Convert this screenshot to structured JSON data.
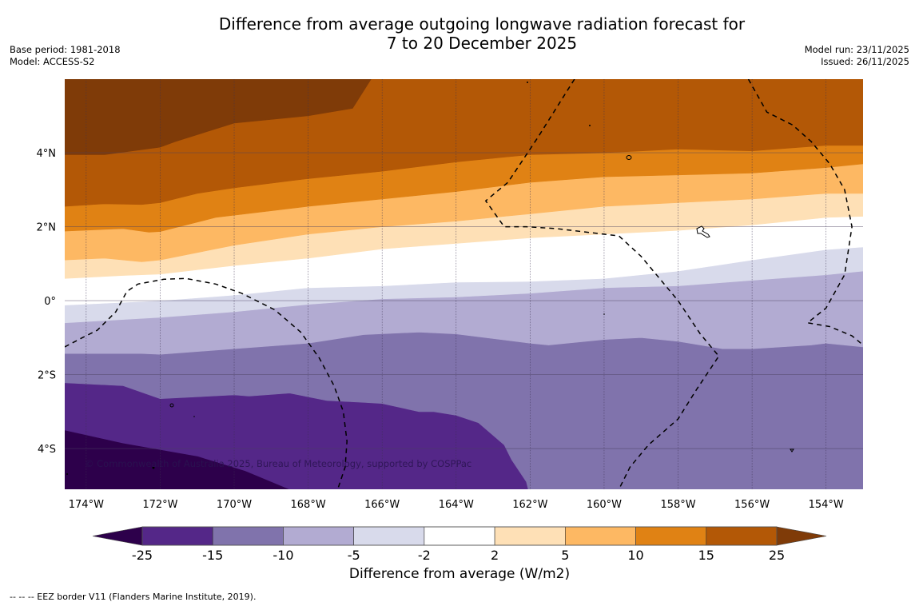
{
  "header": {
    "title_line1": "Difference from average outgoing longwave radiation forecast for",
    "title_line2": "7 to 20 December 2025",
    "base_period": "Base period: 1981-2018",
    "model": "Model: ACCESS-S2",
    "model_run": "Model run: 23/11/2025",
    "issued": "Issued: 26/11/2025"
  },
  "map": {
    "extent": {
      "lon_min": -174.58,
      "lon_max": -153.0,
      "lat_min": -5.1,
      "lat_max": 5.99
    },
    "lat_ticks": [
      {
        "value": 4,
        "label": "4°N"
      },
      {
        "value": 2,
        "label": "2°N"
      },
      {
        "value": 0,
        "label": "0°"
      },
      {
        "value": -2,
        "label": "2°S"
      },
      {
        "value": -4,
        "label": "4°S"
      }
    ],
    "lon_ticks": [
      {
        "value": -174,
        "label": "174°W"
      },
      {
        "value": -172,
        "label": "172°W"
      },
      {
        "value": -170,
        "label": "170°W"
      },
      {
        "value": -168,
        "label": "168°W"
      },
      {
        "value": -166,
        "label": "166°W"
      },
      {
        "value": -164,
        "label": "164°W"
      },
      {
        "value": -162,
        "label": "162°W"
      },
      {
        "value": -160,
        "label": "160°W"
      },
      {
        "value": -158,
        "label": "158°W"
      },
      {
        "value": -156,
        "label": "156°W"
      },
      {
        "value": -154,
        "label": "154°W"
      }
    ],
    "copyright": "© Commonwealth of Australia 2025, Bureau of Meteorology, supported by COSPPac",
    "contour_bands_note": "Each boundary is the lower (southern) edge of a band, listed as [lon, lat] pairs west→east; bands fill from this edge up to the previous boundary.",
    "bands": [
      {
        "range": ">25",
        "color": "#7f3b08",
        "lower_edge": [
          [
            -174.58,
            3.95
          ],
          [
            -173.5,
            3.95
          ],
          [
            -172,
            4.15
          ],
          [
            -171.6,
            4.3
          ],
          [
            -170,
            4.8
          ],
          [
            -168,
            5.0
          ],
          [
            -166.8,
            5.2
          ],
          [
            -166.3,
            5.99
          ]
        ]
      },
      {
        "range": "15 to 25",
        "color": "#b35806",
        "lower_edge": [
          [
            -174.58,
            2.55
          ],
          [
            -173.5,
            2.62
          ],
          [
            -172.5,
            2.6
          ],
          [
            -172,
            2.65
          ],
          [
            -171,
            2.9
          ],
          [
            -170,
            3.05
          ],
          [
            -168,
            3.3
          ],
          [
            -166,
            3.5
          ],
          [
            -164,
            3.75
          ],
          [
            -162,
            3.95
          ],
          [
            -160,
            4.0
          ],
          [
            -158,
            4.1
          ],
          [
            -156,
            4.05
          ],
          [
            -154,
            4.2
          ],
          [
            -153,
            4.2
          ]
        ]
      },
      {
        "range": "10 to 15",
        "color": "#e08214",
        "lower_edge": [
          [
            -174.58,
            1.88
          ],
          [
            -173,
            1.95
          ],
          [
            -172.3,
            1.85
          ],
          [
            -172,
            1.87
          ],
          [
            -170.5,
            2.25
          ],
          [
            -168,
            2.55
          ],
          [
            -166,
            2.75
          ],
          [
            -164,
            2.95
          ],
          [
            -162,
            3.2
          ],
          [
            -160,
            3.35
          ],
          [
            -158,
            3.4
          ],
          [
            -156,
            3.45
          ],
          [
            -154,
            3.6
          ],
          [
            -153,
            3.7
          ]
        ]
      },
      {
        "range": "5 to 10",
        "color": "#fdb863",
        "lower_edge": [
          [
            -174.58,
            1.1
          ],
          [
            -173.5,
            1.15
          ],
          [
            -172.5,
            1.05
          ],
          [
            -172,
            1.1
          ],
          [
            -170,
            1.5
          ],
          [
            -168,
            1.8
          ],
          [
            -166,
            2.0
          ],
          [
            -164,
            2.15
          ],
          [
            -162,
            2.35
          ],
          [
            -160,
            2.55
          ],
          [
            -158,
            2.65
          ],
          [
            -156,
            2.75
          ],
          [
            -154,
            2.9
          ],
          [
            -153,
            2.9
          ]
        ]
      },
      {
        "range": "2 to 5",
        "color": "#fee0b6",
        "lower_edge": [
          [
            -174.58,
            0.6
          ],
          [
            -173,
            0.68
          ],
          [
            -172,
            0.72
          ],
          [
            -170,
            0.95
          ],
          [
            -168,
            1.15
          ],
          [
            -166,
            1.4
          ],
          [
            -164,
            1.55
          ],
          [
            -162,
            1.7
          ],
          [
            -160,
            1.8
          ],
          [
            -158,
            1.9
          ],
          [
            -156,
            2.05
          ],
          [
            -154,
            2.25
          ],
          [
            -153,
            2.28
          ]
        ]
      },
      {
        "range": "-2 to 2",
        "color": "#ffffff",
        "lower_edge": [
          [
            -174.58,
            -0.12
          ],
          [
            -172,
            0.0
          ],
          [
            -170,
            0.15
          ],
          [
            -168,
            0.35
          ],
          [
            -166,
            0.4
          ],
          [
            -164,
            0.5
          ],
          [
            -162,
            0.52
          ],
          [
            -160,
            0.6
          ],
          [
            -158,
            0.8
          ],
          [
            -156,
            1.1
          ],
          [
            -154,
            1.38
          ],
          [
            -153,
            1.45
          ]
        ]
      },
      {
        "range": "-5 to -2",
        "color": "#d8daeb",
        "lower_edge": [
          [
            -174.58,
            -0.6
          ],
          [
            -172,
            -0.45
          ],
          [
            -170,
            -0.3
          ],
          [
            -168,
            -0.1
          ],
          [
            -166,
            0.05
          ],
          [
            -164,
            0.1
          ],
          [
            -162,
            0.2
          ],
          [
            -160,
            0.35
          ],
          [
            -158,
            0.4
          ],
          [
            -156,
            0.55
          ],
          [
            -154,
            0.7
          ],
          [
            -153,
            0.8
          ]
        ]
      },
      {
        "range": "-10 to -5",
        "color": "#b2abd2",
        "lower_edge": [
          [
            -174.58,
            -1.43
          ],
          [
            -172.5,
            -1.43
          ],
          [
            -172,
            -1.45
          ],
          [
            -170,
            -1.3
          ],
          [
            -168,
            -1.15
          ],
          [
            -166.5,
            -0.92
          ],
          [
            -165,
            -0.85
          ],
          [
            -164,
            -0.9
          ],
          [
            -162,
            -1.15
          ],
          [
            -161.5,
            -1.2
          ],
          [
            -160,
            -1.05
          ],
          [
            -159,
            -1.0
          ],
          [
            -158,
            -1.1
          ],
          [
            -156.8,
            -1.3
          ],
          [
            -156,
            -1.3
          ],
          [
            -154.4,
            -1.2
          ],
          [
            -154,
            -1.15
          ],
          [
            -153,
            -1.25
          ]
        ]
      },
      {
        "range": "-15 to -10",
        "color": "#8073ac",
        "lower_edge": [
          [
            -174.58,
            -2.22
          ],
          [
            -173,
            -2.3
          ],
          [
            -172,
            -2.65
          ],
          [
            -170,
            -2.55
          ],
          [
            -169.6,
            -2.58
          ],
          [
            -168.5,
            -2.5
          ],
          [
            -167.5,
            -2.7
          ],
          [
            -166.5,
            -2.75
          ],
          [
            -166,
            -2.78
          ],
          [
            -165,
            -3.0
          ],
          [
            -164.6,
            -3.0
          ],
          [
            -164,
            -3.1
          ],
          [
            -163.4,
            -3.3
          ],
          [
            -162.7,
            -3.9
          ],
          [
            -162.5,
            -4.3
          ],
          [
            -162.1,
            -4.9
          ],
          [
            -162.05,
            -5.1
          ]
        ]
      },
      {
        "range": "-25 to -15",
        "color": "#542788",
        "lower_edge": [
          [
            -174.58,
            -3.5
          ],
          [
            -173,
            -3.85
          ],
          [
            -171,
            -4.2
          ],
          [
            -169.7,
            -4.6
          ],
          [
            -168.5,
            -5.1
          ]
        ]
      },
      {
        "range": "<-25",
        "color": "#2d004b",
        "lower_edge": [
          [
            -174.58,
            -5.1
          ]
        ]
      }
    ],
    "eez_borders": [
      [
        [
          -174.58,
          -1.25
        ],
        [
          -174.1,
          -1.0
        ],
        [
          -173.7,
          -0.8
        ],
        [
          -173.2,
          -0.3
        ],
        [
          -172.9,
          0.25
        ],
        [
          -172.6,
          0.45
        ],
        [
          -171.9,
          0.58
        ],
        [
          -171.3,
          0.6
        ],
        [
          -170.5,
          0.45
        ],
        [
          -169.8,
          0.2
        ],
        [
          -168.9,
          -0.25
        ],
        [
          -168.2,
          -0.85
        ],
        [
          -167.7,
          -1.55
        ],
        [
          -167.3,
          -2.3
        ],
        [
          -167.05,
          -3.0
        ],
        [
          -166.95,
          -3.8
        ],
        [
          -167.0,
          -4.5
        ],
        [
          -167.2,
          -5.1
        ]
      ],
      [
        [
          -160.8,
          5.99
        ],
        [
          -161.8,
          4.4
        ],
        [
          -162.6,
          3.2
        ],
        [
          -163.2,
          2.7
        ],
        [
          -162.7,
          2.0
        ],
        [
          -162.1,
          2.0
        ],
        [
          -161.3,
          1.95
        ],
        [
          -159.6,
          1.75
        ],
        [
          -159.0,
          1.2
        ],
        [
          -158.0,
          0.0
        ],
        [
          -157.4,
          -0.9
        ],
        [
          -156.9,
          -1.5
        ],
        [
          -157.5,
          -2.4
        ],
        [
          -158.0,
          -3.2
        ],
        [
          -158.8,
          -3.9
        ],
        [
          -159.3,
          -4.5
        ],
        [
          -159.6,
          -5.1
        ]
      ],
      [
        [
          -156.1,
          5.99
        ],
        [
          -155.6,
          5.1
        ],
        [
          -154.9,
          4.75
        ],
        [
          -154.4,
          4.3
        ],
        [
          -153.9,
          3.7
        ],
        [
          -153.5,
          3.0
        ],
        [
          -153.3,
          2.0
        ],
        [
          -153.5,
          0.7
        ],
        [
          -154.0,
          -0.2
        ],
        [
          -154.5,
          -0.6
        ],
        [
          -153.9,
          -0.7
        ],
        [
          -153.3,
          -0.95
        ],
        [
          -153.0,
          -1.2
        ]
      ]
    ]
  },
  "colorbar": {
    "title": "Difference from average (W/m2)",
    "ticks": [
      "-25",
      "-15",
      "-10",
      "-5",
      "-2",
      "2",
      "5",
      "10",
      "15",
      "25"
    ],
    "under_color": "#2d004b",
    "over_color": "#7f3b08",
    "colors": [
      "#542788",
      "#8073ac",
      "#b2abd2",
      "#d8daeb",
      "#ffffff",
      "#fee0b6",
      "#fdb863",
      "#e08214",
      "#b35806"
    ]
  },
  "footer": {
    "legend_note": "--  --  -- EEZ border V11 (Flanders Marine Institute, 2019)."
  }
}
